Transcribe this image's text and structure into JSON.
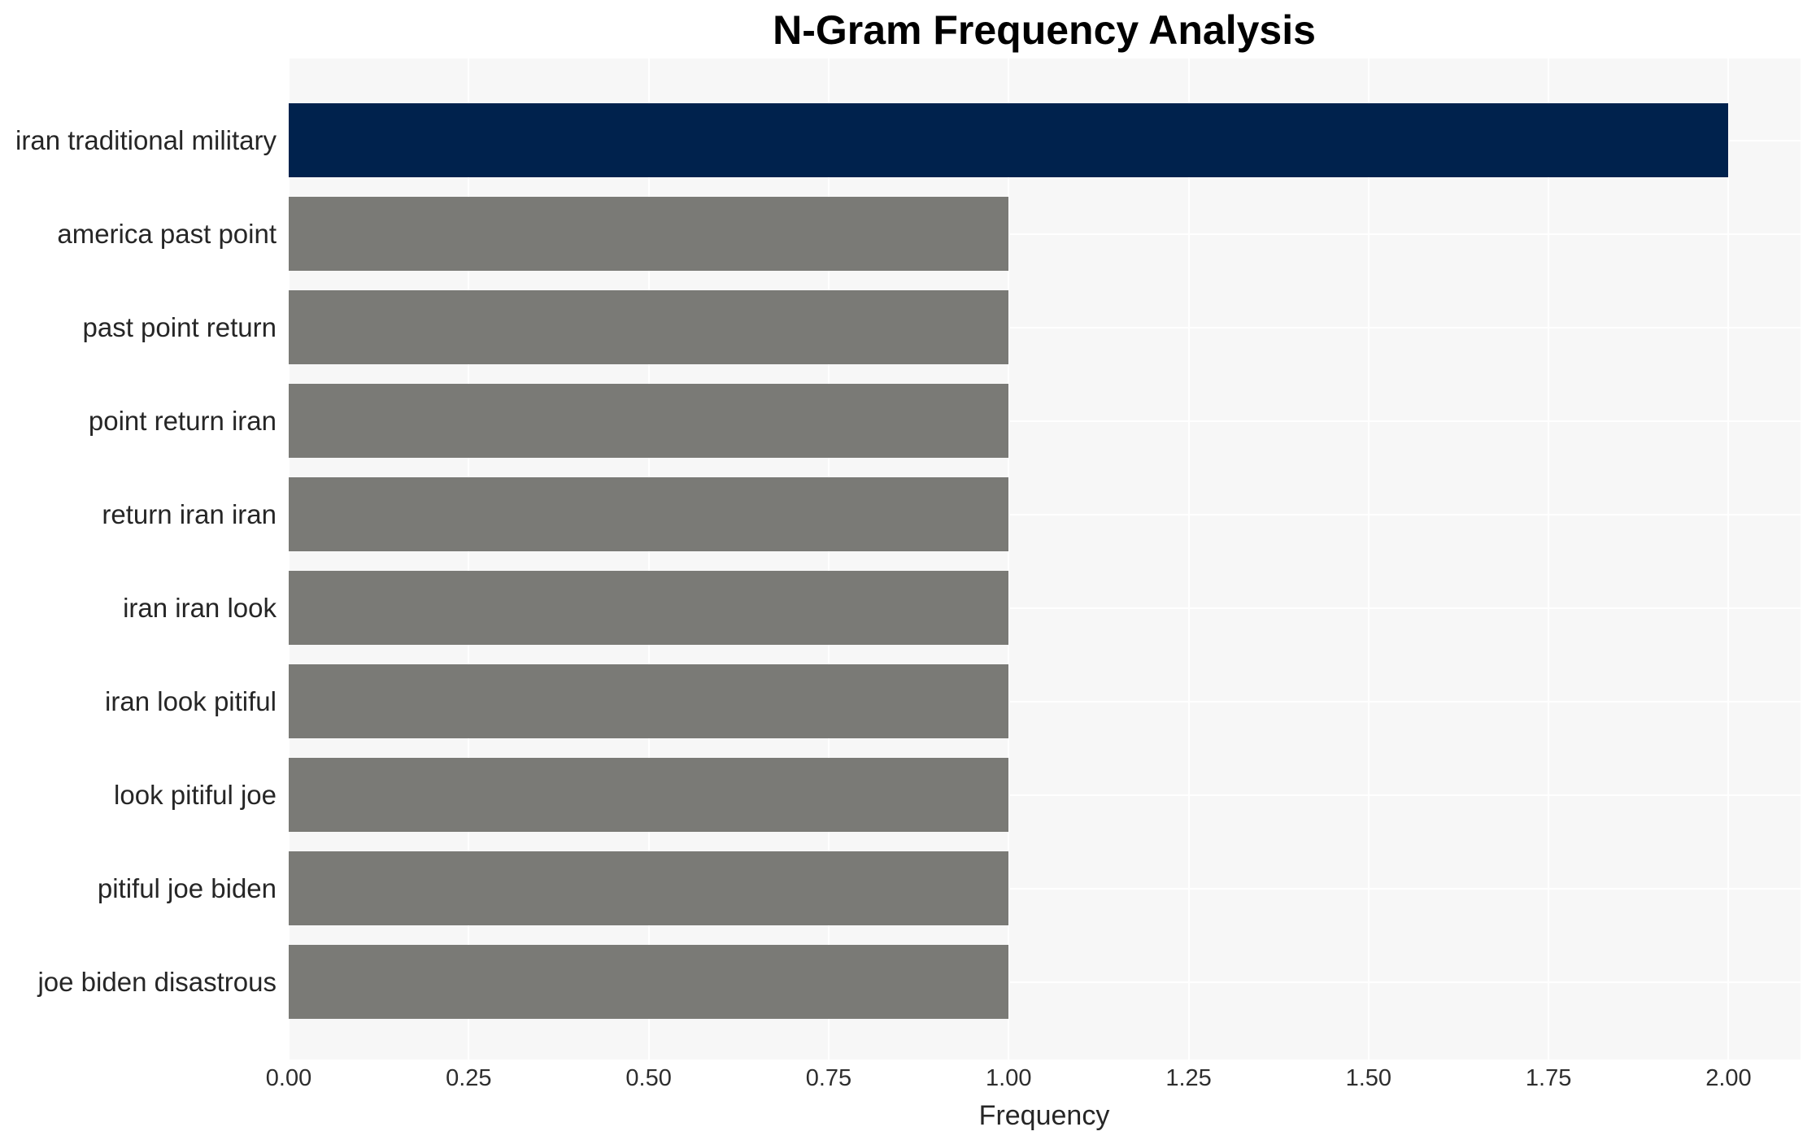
{
  "title": "N-Gram Frequency Analysis",
  "chart_data": {
    "type": "bar",
    "orientation": "horizontal",
    "title": "N-Gram Frequency Analysis",
    "categories": [
      "iran traditional military",
      "america past point",
      "past point return",
      "point return iran",
      "return iran iran",
      "iran iran look",
      "iran look pitiful",
      "look pitiful joe",
      "pitiful joe biden",
      "joe biden disastrous"
    ],
    "values": [
      2,
      1,
      1,
      1,
      1,
      1,
      1,
      1,
      1,
      1
    ],
    "xlabel": "Frequency",
    "ylabel": "",
    "xlim": [
      0,
      2.1
    ],
    "xticks": [
      0,
      0.25,
      0.5,
      0.75,
      1.0,
      1.25,
      1.5,
      1.75,
      2.0
    ],
    "xtick_labels": [
      "0.00",
      "0.25",
      "0.50",
      "0.75",
      "1.00",
      "1.25",
      "1.50",
      "1.75",
      "2.00"
    ],
    "grid": true,
    "legend": false,
    "colors": {
      "highlight_bar": "#00224d",
      "default_bar": "#7a7a76",
      "plot_background": "#f7f7f7",
      "gridline": "#ffffff",
      "text": "#262626"
    }
  }
}
